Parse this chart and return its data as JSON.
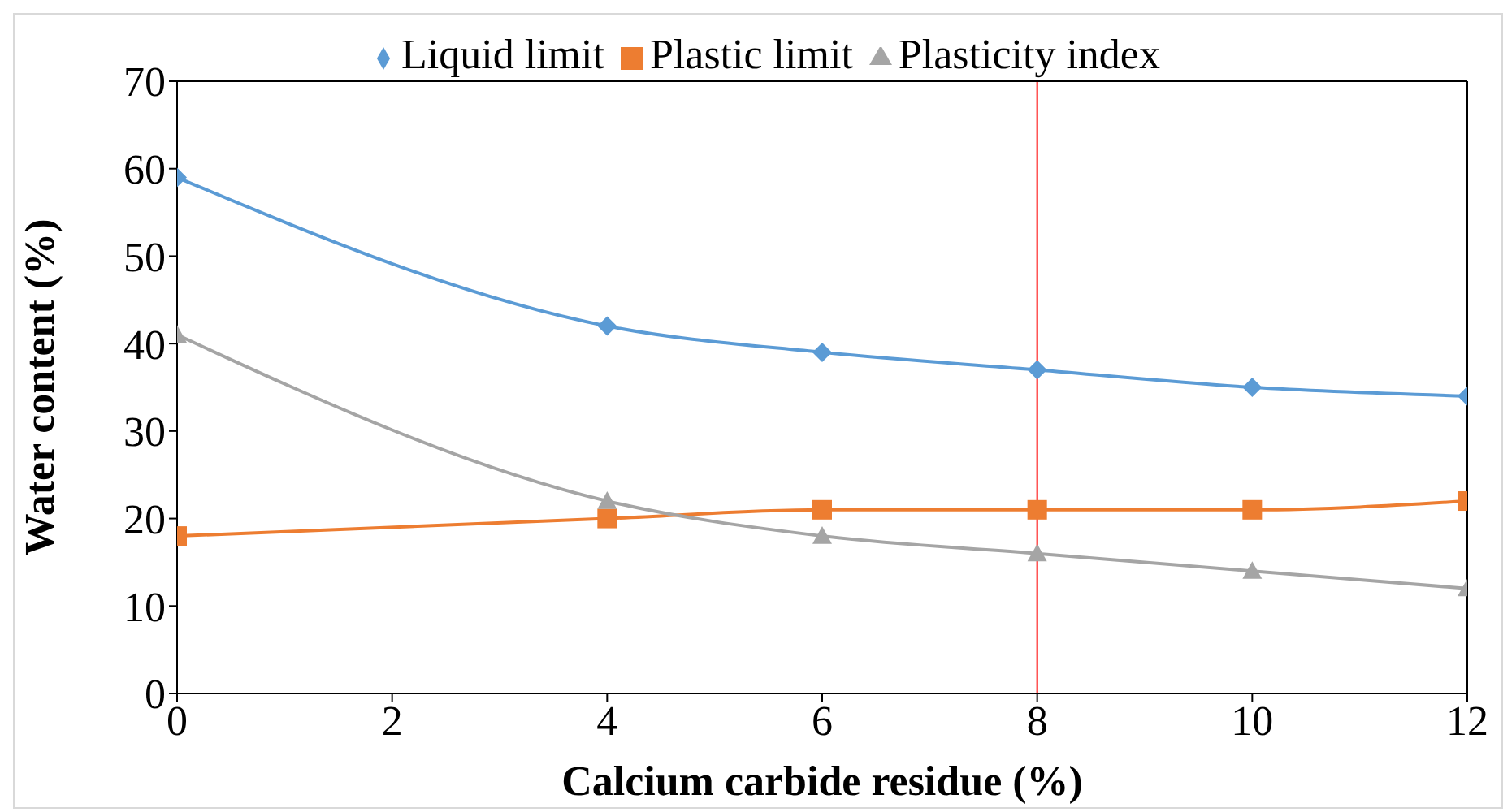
{
  "chart_data": {
    "type": "line",
    "xlabel": "Calcium carbide residue (%)",
    "ylabel": "Water content (%)",
    "x": [
      0,
      4,
      6,
      8,
      10,
      12
    ],
    "series": [
      {
        "name": "Liquid limit",
        "color": "#5b9bd5",
        "marker": "diamond",
        "values": [
          59,
          42,
          39,
          37,
          35,
          34
        ]
      },
      {
        "name": "Plastic limit",
        "color": "#ed7d31",
        "marker": "square",
        "values": [
          18,
          20,
          21,
          21,
          21,
          22
        ]
      },
      {
        "name": "Plasticity index",
        "color": "#a5a5a5",
        "marker": "triangle",
        "values": [
          41,
          22,
          18,
          16,
          14,
          12
        ]
      }
    ],
    "xlim": [
      0,
      12
    ],
    "xticks": [
      0,
      2,
      4,
      6,
      8,
      10,
      12
    ],
    "ylim": [
      0,
      70
    ],
    "yticks": [
      0,
      10,
      20,
      30,
      40,
      50,
      60,
      70
    ],
    "ref_lines": [
      {
        "axis": "x",
        "value": 8,
        "color": "#ff0000"
      }
    ],
    "grid": false,
    "legend": "top",
    "line_style": "solid"
  }
}
